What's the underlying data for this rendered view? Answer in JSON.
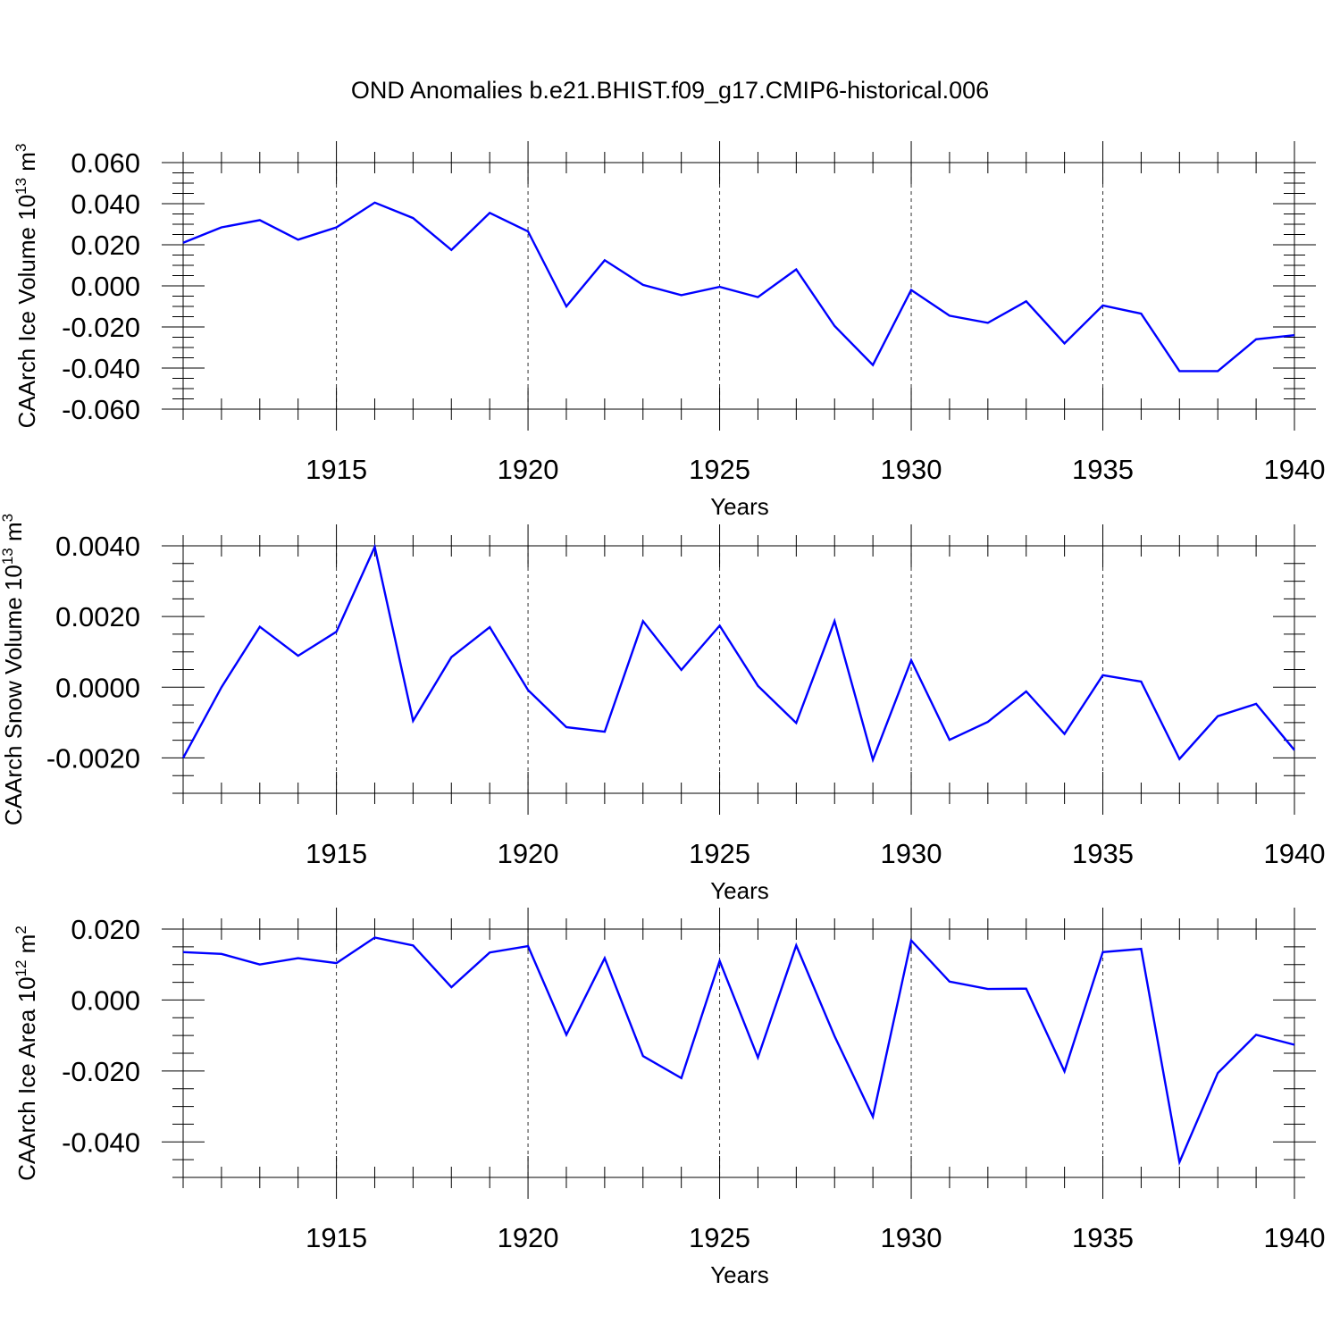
{
  "chart_data": [
    {
      "type": "line",
      "title": "OND Anomalies b.e21.BHIST.f09_g17.CMIP6-historical.006",
      "ylabel": "CAArch Ice Volume 10",
      "ylabel_sup": "13",
      "ylabel_unit": " m",
      "ylabel_unit_sup": "3",
      "xlabel": "Years",
      "xlim": [
        1911,
        1940
      ],
      "ylim": [
        -0.06,
        0.06
      ],
      "major_y": [
        -0.06,
        -0.04,
        -0.02,
        0.0,
        0.02,
        0.04,
        0.06
      ],
      "yticklabels": [
        "-0.060",
        "-0.040",
        "-0.020",
        "0.000",
        "0.020",
        "0.040",
        "0.060"
      ],
      "minor_y_step": 0.005,
      "ytick_decimals": 3,
      "xtick_values": [
        1915,
        1920,
        1925,
        1930,
        1935,
        1940
      ],
      "xticklabels": [
        "1915",
        "1920",
        "1925",
        "1930",
        "1935",
        "1940"
      ],
      "grid_x": [
        1915,
        1920,
        1925,
        1930,
        1935
      ],
      "color": "#0000ff",
      "x": [
        1911,
        1912,
        1913,
        1914,
        1915,
        1916,
        1917,
        1918,
        1919,
        1920,
        1921,
        1922,
        1923,
        1924,
        1925,
        1926,
        1927,
        1928,
        1929,
        1930,
        1931,
        1932,
        1933,
        1934,
        1935,
        1936,
        1937,
        1938,
        1939,
        1940
      ],
      "values": [
        0.021,
        0.0285,
        0.032,
        0.0225,
        0.0285,
        0.0405,
        0.033,
        0.0175,
        0.0355,
        0.0265,
        -0.01,
        0.0125,
        0.0005,
        -0.0045,
        -0.0005,
        -0.0055,
        0.008,
        -0.0195,
        -0.0385,
        -0.002,
        -0.0145,
        -0.018,
        -0.0075,
        -0.028,
        -0.0095,
        -0.0135,
        -0.0415,
        -0.0415,
        -0.026,
        -0.024
      ]
    },
    {
      "type": "line",
      "title": "",
      "ylabel": "CAArch Snow Volume 10",
      "ylabel_sup": "13",
      "ylabel_unit": " m",
      "ylabel_unit_sup": "3",
      "xlabel": "Years",
      "xlim": [
        1911,
        1940
      ],
      "ylim": [
        -0.003,
        0.004
      ],
      "major_y": [
        -0.002,
        0.0,
        0.002,
        0.004
      ],
      "yticklabels": [
        "-0.0020",
        "0.0000",
        "0.0020",
        "0.0040"
      ],
      "minor_y_step": 0.0005,
      "ytick_decimals": 4,
      "xtick_values": [
        1915,
        1920,
        1925,
        1930,
        1935,
        1940
      ],
      "xticklabels": [
        "1915",
        "1920",
        "1925",
        "1930",
        "1935",
        "1940"
      ],
      "grid_x": [
        1915,
        1920,
        1925,
        1930,
        1935
      ],
      "color": "#0000ff",
      "x": [
        1911,
        1912,
        1913,
        1914,
        1915,
        1916,
        1917,
        1918,
        1919,
        1920,
        1921,
        1922,
        1923,
        1924,
        1925,
        1926,
        1927,
        1928,
        1929,
        1930,
        1931,
        1932,
        1933,
        1934,
        1935,
        1936,
        1937,
        1938,
        1939,
        1940
      ],
      "values": [
        -0.002,
        0.0,
        0.00171,
        0.00089,
        0.00157,
        0.00397,
        -0.00095,
        0.00085,
        0.0017,
        -8e-05,
        -0.00113,
        -0.00126,
        0.00187,
        0.00049,
        0.00174,
        4e-05,
        -0.00101,
        0.00187,
        -0.00205,
        0.00076,
        -0.00149,
        -0.00098,
        -0.00012,
        -0.00132,
        0.00034,
        0.00016,
        -0.00203,
        -0.00082,
        -0.00047,
        -0.00178
      ]
    },
    {
      "type": "line",
      "title": "",
      "ylabel": "CAArch Ice Area 10",
      "ylabel_sup": "12",
      "ylabel_unit": " m",
      "ylabel_unit_sup": "2",
      "xlabel": "Years",
      "xlim": [
        1911,
        1940
      ],
      "ylim": [
        -0.05,
        0.02
      ],
      "major_y": [
        -0.04,
        -0.02,
        0.0,
        0.02
      ],
      "yticklabels": [
        "-0.040",
        "-0.020",
        "0.000",
        "0.020"
      ],
      "minor_y_step": 0.005,
      "ytick_decimals": 3,
      "xtick_values": [
        1915,
        1920,
        1925,
        1930,
        1935,
        1940
      ],
      "xticklabels": [
        "1915",
        "1920",
        "1925",
        "1930",
        "1935",
        "1940"
      ],
      "grid_x": [
        1915,
        1920,
        1925,
        1930,
        1935
      ],
      "color": "#0000ff",
      "x": [
        1911,
        1912,
        1913,
        1914,
        1915,
        1916,
        1917,
        1918,
        1919,
        1920,
        1921,
        1922,
        1923,
        1924,
        1925,
        1926,
        1927,
        1928,
        1929,
        1930,
        1931,
        1932,
        1933,
        1934,
        1935,
        1936,
        1937,
        1938,
        1939,
        1940
      ],
      "values": [
        0.0135,
        0.013,
        0.01,
        0.0118,
        0.0104,
        0.0176,
        0.0154,
        0.0036,
        0.0134,
        0.0152,
        -0.0098,
        0.0118,
        -0.0158,
        -0.022,
        0.011,
        -0.0162,
        0.0154,
        -0.0102,
        -0.0329,
        0.0168,
        0.0052,
        0.0031,
        0.0032,
        -0.0201,
        0.0135,
        0.0144,
        -0.0457,
        -0.0206,
        -0.0098,
        -0.0126
      ]
    }
  ]
}
